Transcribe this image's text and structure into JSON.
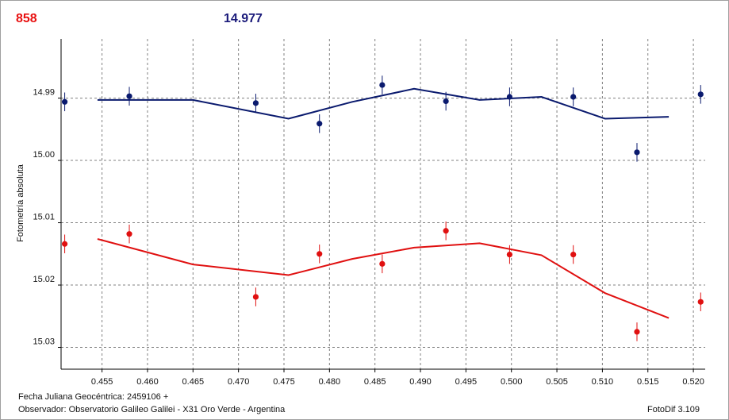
{
  "header": {
    "left_value": "858",
    "right_value": "14.977"
  },
  "footer": {
    "jd_label": "Fecha Juliana Geocéntrica: 2459106 +",
    "observer": "Observador: Observatorio Galileo Galilei - X31 Oro Verde - Argentina",
    "software": "FotoDif 3.109"
  },
  "colors": {
    "blue_series": "#0a1a6e",
    "red_series": "#e01010",
    "grid": "#808080"
  },
  "chart_data": {
    "type": "scatter",
    "ylabel": "Fotometría absoluta",
    "xlabel": "",
    "xlim": [
      0.4505,
      0.5213
    ],
    "ylim": [
      15.0335,
      14.9805
    ],
    "y_inverted": true,
    "grid": true,
    "x_ticks": [
      "0.455",
      "0.460",
      "0.465",
      "0.470",
      "0.475",
      "0.480",
      "0.485",
      "0.490",
      "0.495",
      "0.500",
      "0.505",
      "0.510",
      "0.515",
      "0.520"
    ],
    "x_tick_values": [
      0.455,
      0.46,
      0.465,
      0.47,
      0.475,
      0.48,
      0.485,
      0.49,
      0.495,
      0.5,
      0.505,
      0.51,
      0.515,
      0.52
    ],
    "y_ticks": [
      "14.99",
      "15.00",
      "15.01",
      "15.02",
      "15.03"
    ],
    "y_tick_values": [
      14.99,
      15.0,
      15.01,
      15.02,
      15.03
    ],
    "series": [
      {
        "color": "#0a1a6e",
        "points": [
          {
            "x": 0.4509,
            "y": 14.9906,
            "err": 0.0015
          },
          {
            "x": 0.458,
            "y": 14.9897,
            "err": 0.0015
          },
          {
            "x": 0.4719,
            "y": 14.9908,
            "err": 0.0015
          },
          {
            "x": 0.4789,
            "y": 14.9941,
            "err": 0.0015
          },
          {
            "x": 0.4858,
            "y": 14.9879,
            "err": 0.0015
          },
          {
            "x": 0.4928,
            "y": 14.9905,
            "err": 0.0015
          },
          {
            "x": 0.4998,
            "y": 14.9898,
            "err": 0.0015
          },
          {
            "x": 0.5068,
            "y": 14.9898,
            "err": 0.0015
          },
          {
            "x": 0.5138,
            "y": 14.9987,
            "err": 0.0015
          },
          {
            "x": 0.5208,
            "y": 14.9894,
            "err": 0.0015
          }
        ],
        "fit": [
          {
            "x": 0.4545,
            "y": 14.9903
          },
          {
            "x": 0.465,
            "y": 14.9903
          },
          {
            "x": 0.4755,
            "y": 14.9933
          },
          {
            "x": 0.4825,
            "y": 14.9906
          },
          {
            "x": 0.4893,
            "y": 14.9885
          },
          {
            "x": 0.4965,
            "y": 14.9903
          },
          {
            "x": 0.5033,
            "y": 14.9898
          },
          {
            "x": 0.5103,
            "y": 14.9933
          },
          {
            "x": 0.5173,
            "y": 14.993
          }
        ]
      },
      {
        "color": "#e01010",
        "points": [
          {
            "x": 0.4509,
            "y": 15.0134,
            "err": 0.0015
          },
          {
            "x": 0.458,
            "y": 15.0118,
            "err": 0.0015
          },
          {
            "x": 0.4719,
            "y": 15.0219,
            "err": 0.0015
          },
          {
            "x": 0.4789,
            "y": 15.015,
            "err": 0.0015
          },
          {
            "x": 0.4858,
            "y": 15.0166,
            "err": 0.0015
          },
          {
            "x": 0.4928,
            "y": 15.0113,
            "err": 0.0015
          },
          {
            "x": 0.4998,
            "y": 15.0151,
            "err": 0.0015
          },
          {
            "x": 0.5068,
            "y": 15.0151,
            "err": 0.0015
          },
          {
            "x": 0.5138,
            "y": 15.0275,
            "err": 0.0015
          },
          {
            "x": 0.5208,
            "y": 15.0227,
            "err": 0.0015
          }
        ],
        "fit": [
          {
            "x": 0.4545,
            "y": 15.0126
          },
          {
            "x": 0.465,
            "y": 15.0167
          },
          {
            "x": 0.4755,
            "y": 15.0184
          },
          {
            "x": 0.4825,
            "y": 15.0158
          },
          {
            "x": 0.4893,
            "y": 15.014
          },
          {
            "x": 0.4965,
            "y": 15.0133
          },
          {
            "x": 0.5033,
            "y": 15.0152
          },
          {
            "x": 0.5103,
            "y": 15.0213
          },
          {
            "x": 0.5173,
            "y": 15.0253
          }
        ]
      }
    ]
  }
}
